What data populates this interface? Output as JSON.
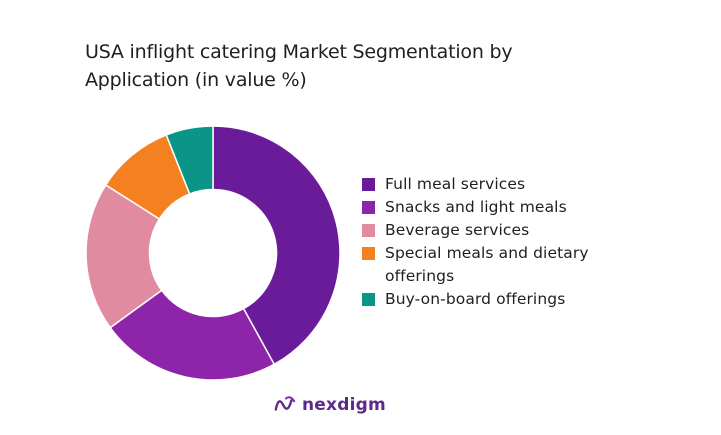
{
  "chart_data": {
    "type": "pie",
    "title": "USA inflight catering Market Segmentation by Application (in value %)",
    "categories": [
      "Full meal services",
      "Snacks and light meals",
      "Beverage services",
      "Special meals and dietary offerings",
      "Buy-on-board offerings"
    ],
    "values": [
      42,
      23,
      19,
      10,
      6
    ],
    "colors": [
      "#6a1b9a",
      "#8e24aa",
      "#e08ba0",
      "#f4801f",
      "#0b9488"
    ],
    "hole": 0.5,
    "legend_position": "right"
  },
  "logo": {
    "text": "nexdigm",
    "color": "#5c2a8a",
    "icon": "nexdigm-logo-icon"
  }
}
